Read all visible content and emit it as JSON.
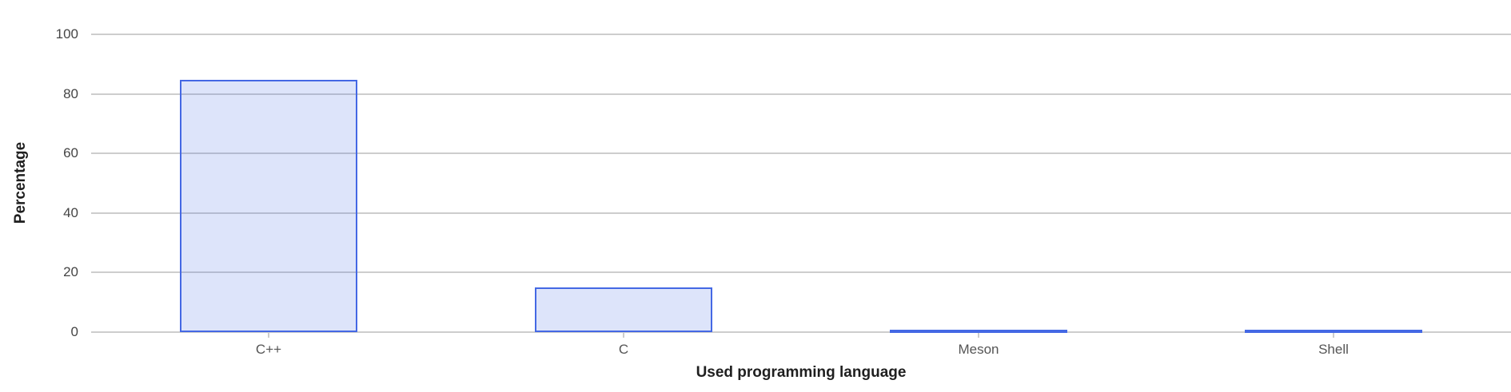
{
  "chart_data": {
    "type": "bar",
    "title": "",
    "categories": [
      "C++",
      "C",
      "Meson",
      "Shell"
    ],
    "values": [
      84.5,
      14.7,
      0.5,
      0.4
    ],
    "xlabel": "Used programming language",
    "ylabel": "Percentage",
    "ylim": [
      0,
      100
    ],
    "yticks": [
      0,
      20,
      40,
      60,
      80,
      100
    ],
    "grid": true,
    "legend": "none",
    "colors": {
      "bar_border": "#4468e4",
      "bar_fill": "rgba(68, 104, 228, 0.18)",
      "gridline": "#cdcdcd",
      "tick_mark": "#cdcdcd",
      "y_tick_label": "#454545",
      "x_tick_label": "#555555",
      "axis_title": "#1f1f1f",
      "background": "#ffffff"
    }
  }
}
